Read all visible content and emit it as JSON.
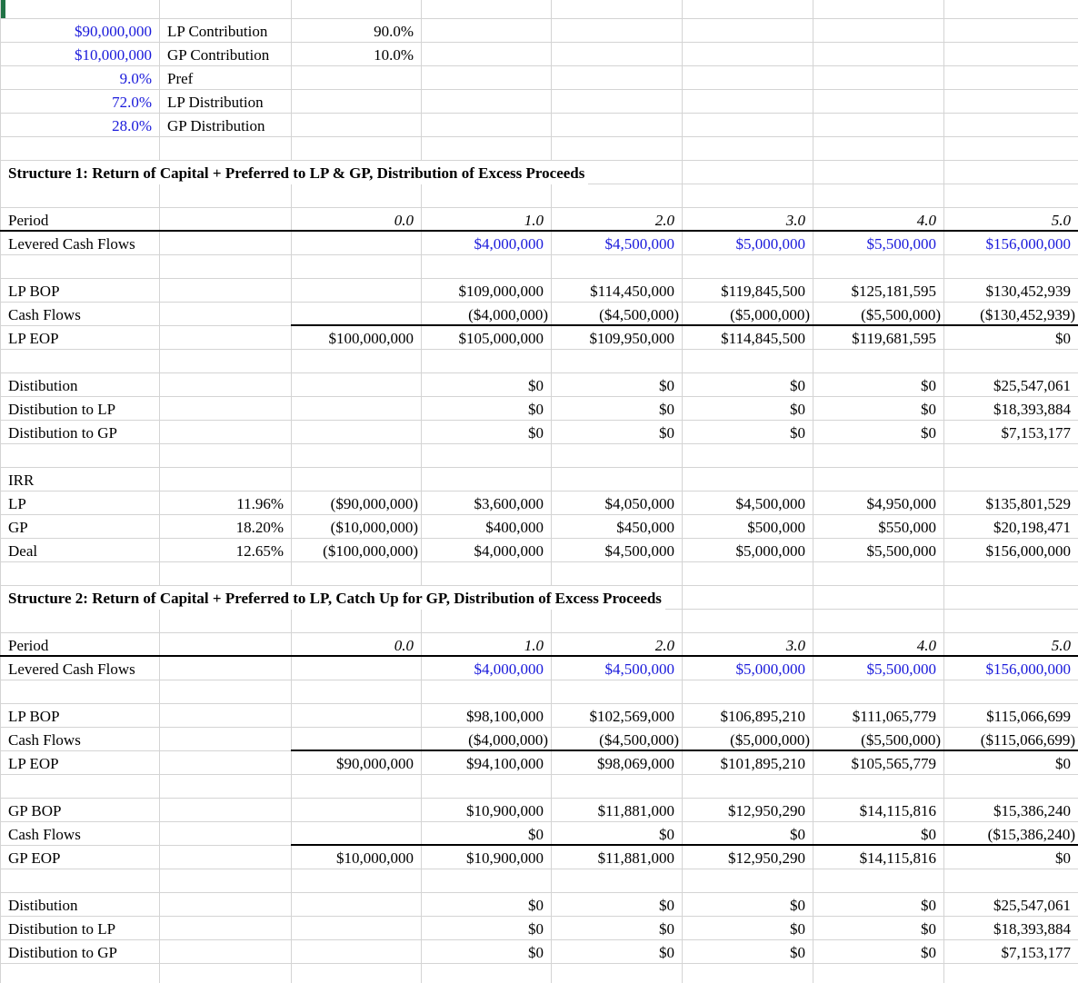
{
  "rows": [
    [
      "$90,000,000",
      "LP Contribution",
      "90.0%"
    ],
    [
      "$10,000,000",
      "GP Contribution",
      "10.0%"
    ],
    [
      "9.0%",
      "Pref"
    ],
    [
      "72.0%",
      "LP Distribution"
    ],
    [
      "28.0%",
      "GP Distribution"
    ],
    [],
    [
      "Structure 1: Return of Capital + Preferred to LP & GP, Distribution of Excess Proceeds"
    ],
    [],
    [
      "Period",
      null,
      "0.0",
      "1.0",
      "2.0",
      "3.0",
      "4.0",
      "5.0"
    ],
    [
      "Levered Cash Flows",
      null,
      null,
      "$4,000,000",
      "$4,500,000",
      "$5,000,000",
      "$5,500,000",
      "$156,000,000"
    ],
    [],
    [
      "LP BOP",
      null,
      null,
      "$109,000,000",
      "$114,450,000",
      "$119,845,500",
      "$125,181,595",
      "$130,452,939"
    ],
    [
      "Cash Flows",
      null,
      null,
      "($4,000,000)",
      "($4,500,000)",
      "($5,000,000)",
      "($5,500,000)",
      "($130,452,939)"
    ],
    [
      "LP EOP",
      null,
      "$100,000,000",
      "$105,000,000",
      "$109,950,000",
      "$114,845,500",
      "$119,681,595",
      "$0"
    ],
    [],
    [
      "Distibution",
      null,
      null,
      "$0",
      "$0",
      "$0",
      "$0",
      "$25,547,061"
    ],
    [
      "Distibution to LP",
      null,
      null,
      "$0",
      "$0",
      "$0",
      "$0",
      "$18,393,884"
    ],
    [
      "Distibution to GP",
      null,
      null,
      "$0",
      "$0",
      "$0",
      "$0",
      "$7,153,177"
    ],
    [],
    [
      "IRR"
    ],
    [
      "LP",
      "11.96%",
      "($90,000,000)",
      "$3,600,000",
      "$4,050,000",
      "$4,500,000",
      "$4,950,000",
      "$135,801,529"
    ],
    [
      "GP",
      "18.20%",
      "($10,000,000)",
      "$400,000",
      "$450,000",
      "$500,000",
      "$550,000",
      "$20,198,471"
    ],
    [
      "Deal",
      "12.65%",
      "($100,000,000)",
      "$4,000,000",
      "$4,500,000",
      "$5,000,000",
      "$5,500,000",
      "$156,000,000"
    ],
    [],
    [
      "Structure 2: Return of Capital + Preferred to LP, Catch Up for GP, Distribution of Excess Proceeds"
    ],
    [],
    [
      "Period",
      null,
      "0.0",
      "1.0",
      "2.0",
      "3.0",
      "4.0",
      "5.0"
    ],
    [
      "Levered Cash Flows",
      null,
      null,
      "$4,000,000",
      "$4,500,000",
      "$5,000,000",
      "$5,500,000",
      "$156,000,000"
    ],
    [],
    [
      "LP BOP",
      null,
      null,
      "$98,100,000",
      "$102,569,000",
      "$106,895,210",
      "$111,065,779",
      "$115,066,699"
    ],
    [
      "Cash Flows",
      null,
      null,
      "($4,000,000)",
      "($4,500,000)",
      "($5,000,000)",
      "($5,500,000)",
      "($115,066,699)"
    ],
    [
      "LP EOP",
      null,
      "$90,000,000",
      "$94,100,000",
      "$98,069,000",
      "$101,895,210",
      "$105,565,779",
      "$0"
    ],
    [],
    [
      "GP BOP",
      null,
      null,
      "$10,900,000",
      "$11,881,000",
      "$12,950,290",
      "$14,115,816",
      "$15,386,240"
    ],
    [
      "Cash Flows",
      null,
      null,
      "$0",
      "$0",
      "$0",
      "$0",
      "($15,386,240)"
    ],
    [
      "GP EOP",
      null,
      "$10,000,000",
      "$10,900,000",
      "$11,881,000",
      "$12,950,290",
      "$14,115,816",
      "$0"
    ],
    [],
    [
      "Distibution",
      null,
      null,
      "$0",
      "$0",
      "$0",
      "$0",
      "$25,547,061"
    ],
    [
      "Distibution to LP",
      null,
      null,
      "$0",
      "$0",
      "$0",
      "$0",
      "$18,393,884"
    ],
    [
      "Distibution to GP",
      null,
      null,
      "$0",
      "$0",
      "$0",
      "$0",
      "$7,153,177"
    ],
    []
  ]
}
